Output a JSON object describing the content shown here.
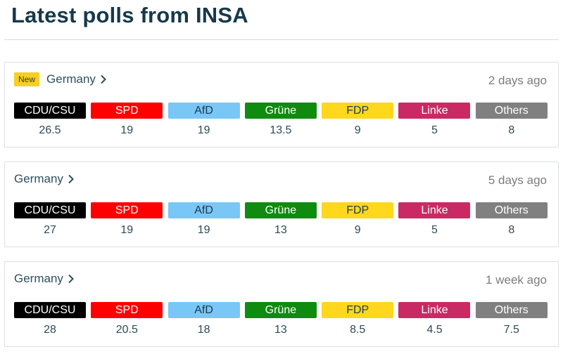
{
  "page": {
    "title": "Latest polls from INSA"
  },
  "parties": [
    {
      "name": "CDU/CSU",
      "bg": "#000000",
      "fg": "#ffffff"
    },
    {
      "name": "SPD",
      "bg": "#ff0000",
      "fg": "#ffffff"
    },
    {
      "name": "AfD",
      "bg": "#79c7f7",
      "fg": "#1f3a4a"
    },
    {
      "name": "Grüne",
      "bg": "#0f8b0f",
      "fg": "#ffffff"
    },
    {
      "name": "FDP",
      "bg": "#ffd71d",
      "fg": "#1f3a4a"
    },
    {
      "name": "Linke",
      "bg": "#c92a63",
      "fg": "#ffffff"
    },
    {
      "name": "Others",
      "bg": "#808080",
      "fg": "#ffffff"
    }
  ],
  "polls": [
    {
      "badge": "New",
      "region": "Germany",
      "time_ago": "2 days ago",
      "values": [
        "26.5",
        "19",
        "19",
        "13.5",
        "9",
        "5",
        "8"
      ]
    },
    {
      "badge": "",
      "region": "Germany",
      "time_ago": "5 days ago",
      "values": [
        "27",
        "19",
        "19",
        "13",
        "9",
        "5",
        "8"
      ]
    },
    {
      "badge": "",
      "region": "Germany",
      "time_ago": "1 week ago",
      "values": [
        "28",
        "20.5",
        "18",
        "13",
        "8.5",
        "4.5",
        "7.5"
      ]
    }
  ],
  "icons": {
    "region_chevron": "chevron-right-icon"
  }
}
